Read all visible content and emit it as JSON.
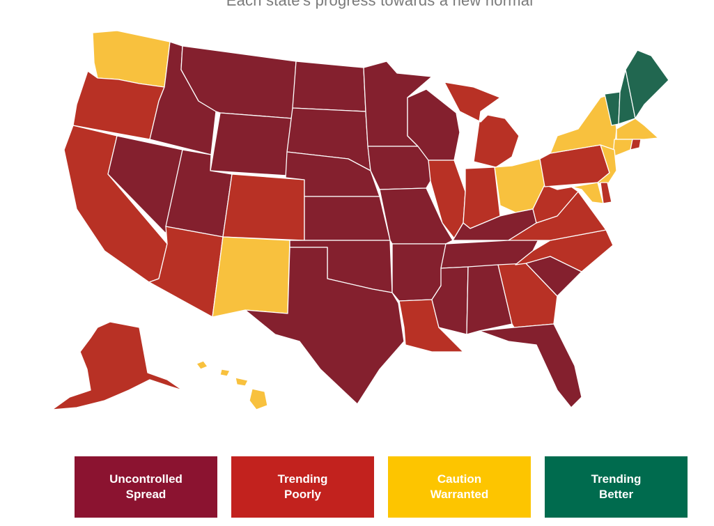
{
  "subtitle": "Each state's progress towards a new normal",
  "colors": {
    "uncontrolled": "#84202E",
    "poorly": "#B83125",
    "caution": "#F8C13E",
    "better": "#216750"
  },
  "legend": [
    {
      "key": "uncontrolled",
      "label": "Uncontrolled\nSpread",
      "color": "#8B1330"
    },
    {
      "key": "poorly",
      "label": "Trending\nPoorly",
      "color": "#C2221E"
    },
    {
      "key": "caution",
      "label": "Caution\nWarranted",
      "color": "#FDC500"
    },
    {
      "key": "better",
      "label": "Trending\nBetter",
      "color": "#006B4E"
    }
  ],
  "states": {
    "WA": "caution",
    "OR": "poorly",
    "CA": "poorly",
    "ID": "uncontrolled",
    "NV": "uncontrolled",
    "MT": "uncontrolled",
    "WY": "uncontrolled",
    "UT": "uncontrolled",
    "AZ": "poorly",
    "CO": "poorly",
    "NM": "caution",
    "ND": "uncontrolled",
    "SD": "uncontrolled",
    "NE": "uncontrolled",
    "KS": "uncontrolled",
    "OK": "uncontrolled",
    "TX": "uncontrolled",
    "MN": "uncontrolled",
    "IA": "uncontrolled",
    "MO": "uncontrolled",
    "AR": "uncontrolled",
    "LA": "poorly",
    "WI": "uncontrolled",
    "IL": "poorly",
    "MI": "poorly",
    "IN": "poorly",
    "OH": "caution",
    "KY": "uncontrolled",
    "TN": "uncontrolled",
    "MS": "uncontrolled",
    "AL": "uncontrolled",
    "GA": "poorly",
    "FL": "uncontrolled",
    "SC": "uncontrolled",
    "NC": "poorly",
    "VA": "poorly",
    "WV": "poorly",
    "PA": "poorly",
    "NY": "caution",
    "VT": "better",
    "NH": "better",
    "ME": "better",
    "MA": "caution",
    "CT": "caution",
    "RI": "poorly",
    "NJ": "caution",
    "DE": "poorly",
    "MD": "caution",
    "AK": "poorly",
    "HI": "caution"
  }
}
